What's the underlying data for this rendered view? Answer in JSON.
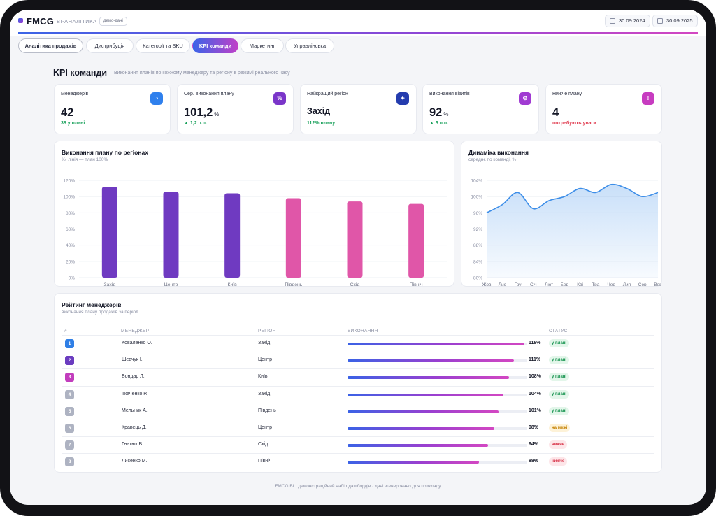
{
  "header": {
    "brand": "FMCG",
    "brand_sub": "BI-АНАЛІТИКА",
    "demo_badge": "демо-дані",
    "date_from": "30.09.2024",
    "date_to": "30.09.2025"
  },
  "tabs": [
    {
      "label": "Аналітика продажів"
    },
    {
      "label": "Дистрибуція"
    },
    {
      "label": "Категорії та SKU"
    },
    {
      "label": "KPI команди"
    },
    {
      "label": "Маркетинг"
    },
    {
      "label": "Управлінська"
    }
  ],
  "page": {
    "title": "KPI команди",
    "subtitle": "Виконання планів по кожному менеджеру та регіону в режимі реального часу"
  },
  "kpis": [
    {
      "label": "Менеджерів",
      "value": "42",
      "unit": "",
      "note": "38 у плані",
      "icon": "pie-chart-icon",
      "color": "#2f80ed"
    },
    {
      "label": "Сер. виконання плану",
      "value": "101,2",
      "unit": "%",
      "note": "▲ 1,2 п.п.",
      "icon": "percent-icon",
      "color": "#7a35c9"
    },
    {
      "label": "Найкращий регіон",
      "value": "Захід",
      "unit": "",
      "note": "112% плану",
      "icon": "star-icon",
      "color": "#243cae"
    },
    {
      "label": "Виконання візитів",
      "value": "92",
      "unit": "%",
      "note": "▲ 3 п.п.",
      "icon": "gear-icon",
      "color": "#a03ad2"
    },
    {
      "label": "Нижче плану",
      "value": "4",
      "unit": "",
      "note": "потребують уваги",
      "icon": "alert-icon",
      "color": "#c73cc0"
    }
  ],
  "region_chart": {
    "title": "Виконання плану по регіонах",
    "subtitle": "%, лінія — план 100%"
  },
  "trend_chart": {
    "title": "Динаміка виконання",
    "subtitle": "середнє по команді, %"
  },
  "chart_data": [
    {
      "type": "bar",
      "categories": [
        "Захід",
        "Центр",
        "Київ",
        "Південь",
        "Схід",
        "Північ"
      ],
      "values": [
        112,
        106,
        104,
        98,
        94,
        91
      ],
      "colors": [
        "#6f3ac1",
        "#6f3ac1",
        "#6f3ac1",
        "#e056a8",
        "#e056a8",
        "#e056a8"
      ],
      "ylim": [
        0,
        120
      ],
      "yticks": [
        "0%",
        "20%",
        "40%",
        "60%",
        "80%",
        "100%",
        "120%"
      ],
      "grid": true
    },
    {
      "type": "area",
      "x": [
        "Жов",
        "Лис",
        "Гру",
        "Січ",
        "Лют",
        "Бер",
        "Кві",
        "Тра",
        "Чер",
        "Лип",
        "Сер",
        "Вер"
      ],
      "values": [
        96,
        98,
        101,
        97,
        99,
        100,
        102,
        101,
        103,
        102,
        100,
        101
      ],
      "ylim": [
        80,
        104
      ],
      "yticks": [
        "80%",
        "84%",
        "88%",
        "92%",
        "96%",
        "100%",
        "104%"
      ],
      "color": "#3d8ee8",
      "grid": true
    }
  ],
  "ranking": {
    "title": "Рейтинг менеджерів",
    "subtitle": "виконання плану продажів за період",
    "columns": {
      "rank": "#",
      "manager": "МЕНЕДЖЕР",
      "region": "РЕГІОН",
      "progress": "ВИКОНАННЯ",
      "status": "СТАТУС"
    },
    "rows": [
      {
        "rank": "1",
        "manager": "Коваленко О.",
        "region": "Захід",
        "pct": "118%",
        "value": 118,
        "status": "у плані",
        "status_type": "ok",
        "rank_color": "#2f7fe6"
      },
      {
        "rank": "2",
        "manager": "Шевчук І.",
        "region": "Центр",
        "pct": "111%",
        "value": 111,
        "status": "у плані",
        "status_type": "ok",
        "rank_color": "#6b3cc0"
      },
      {
        "rank": "3",
        "manager": "Бондар Л.",
        "region": "Київ",
        "pct": "108%",
        "value": 108,
        "status": "у плані",
        "status_type": "ok",
        "rank_color": "#c23dbd"
      },
      {
        "rank": "4",
        "manager": "Ткаченко Р.",
        "region": "Захід",
        "pct": "104%",
        "value": 104,
        "status": "у плані",
        "status_type": "ok",
        "rank_color": "#aeb3c2"
      },
      {
        "rank": "5",
        "manager": "Мельник А.",
        "region": "Південь",
        "pct": "101%",
        "value": 101,
        "status": "у плані",
        "status_type": "ok",
        "rank_color": "#aeb3c2"
      },
      {
        "rank": "6",
        "manager": "Кравець Д.",
        "region": "Центр",
        "pct": "98%",
        "value": 98,
        "status": "на межі",
        "status_type": "edge",
        "rank_color": "#aeb3c2"
      },
      {
        "rank": "7",
        "manager": "Гнатюк В.",
        "region": "Схід",
        "pct": "94%",
        "value": 94,
        "status": "нижче",
        "status_type": "low",
        "rank_color": "#aeb3c2"
      },
      {
        "rank": "8",
        "manager": "Лисенко М.",
        "region": "Північ",
        "pct": "88%",
        "value": 88,
        "status": "нижче",
        "status_type": "low",
        "rank_color": "#aeb3c2"
      }
    ]
  },
  "footer": "FMCG BI · демонстраційний набір дашбордів · дані згенеровано для прикладу"
}
